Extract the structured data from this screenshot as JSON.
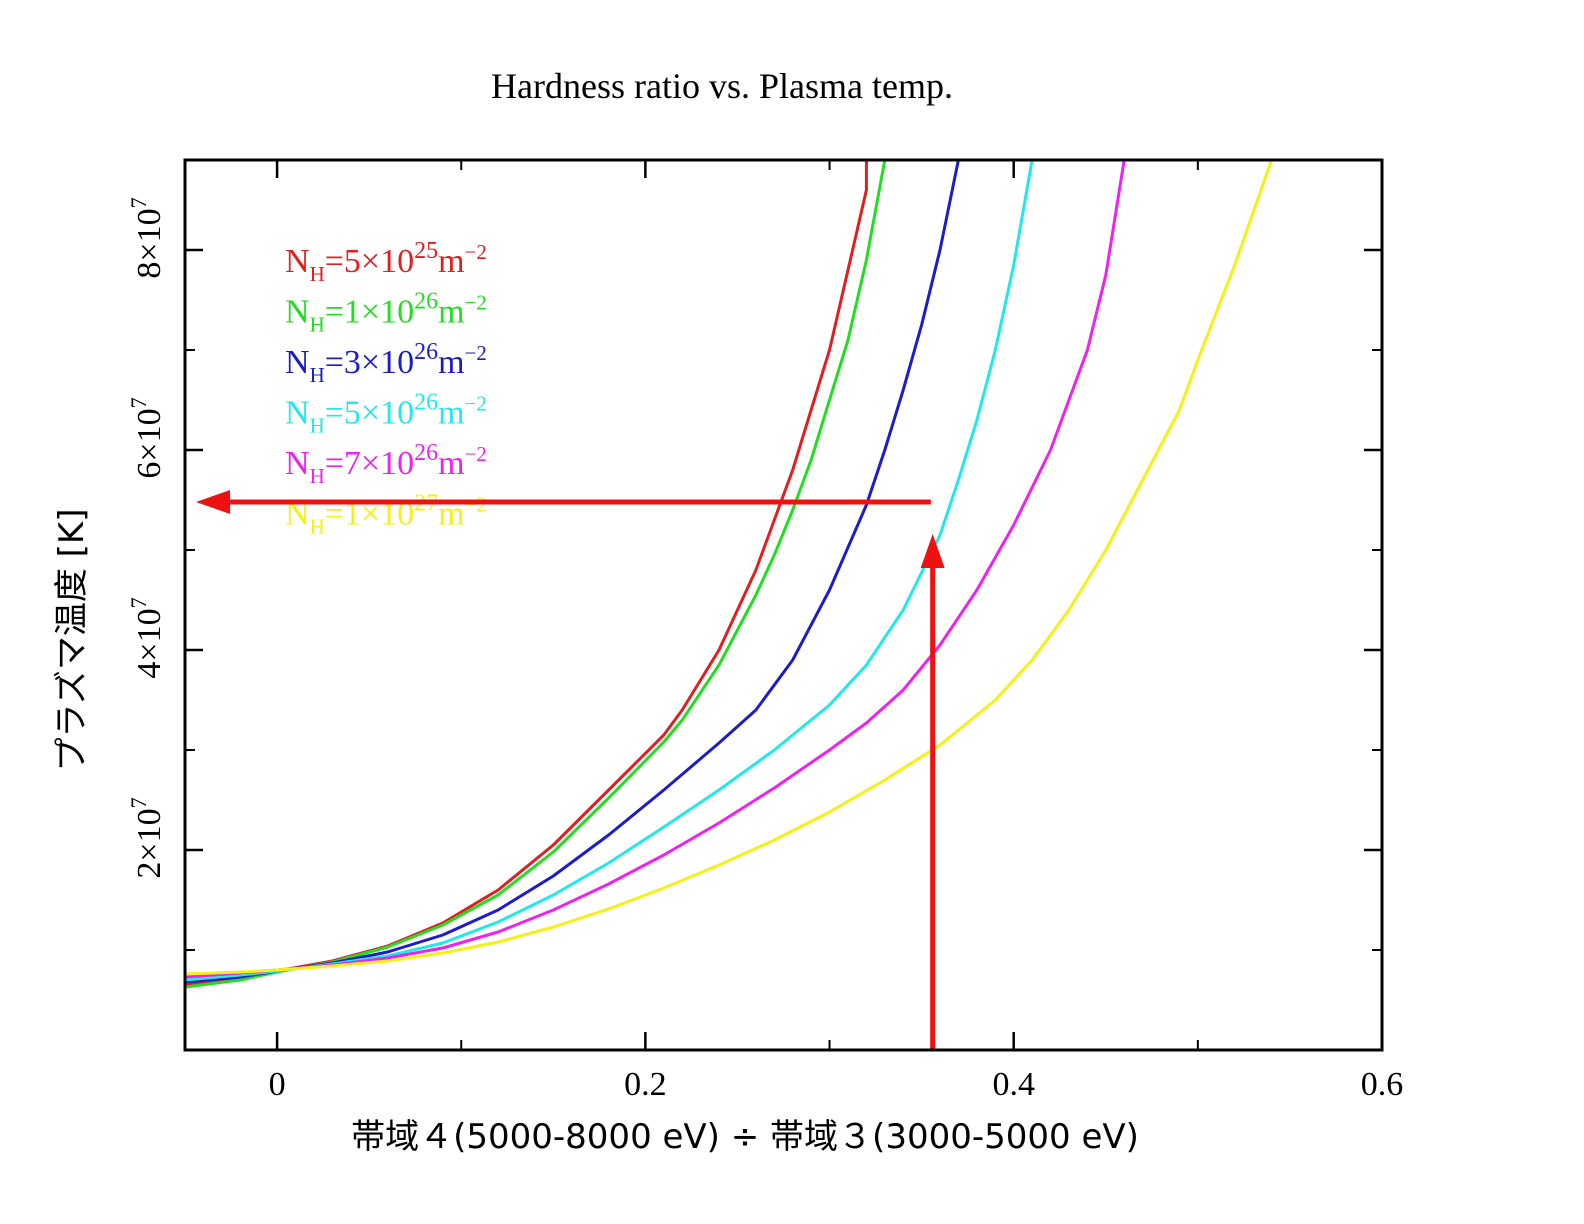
{
  "chart_data": {
    "type": "line",
    "title": "Hardness ratio vs. Plasma temp.",
    "xlabel": "帯域４(5000-8000 eV) ÷ 帯域３(3000-5000 eV)",
    "ylabel": "プラズマ温度 [K]",
    "xlim": [
      -0.05,
      0.6
    ],
    "ylim": [
      0,
      89000000
    ],
    "x_ticks": [
      {
        "value": 0,
        "label": "0"
      },
      {
        "value": 0.2,
        "label": "0.2"
      },
      {
        "value": 0.4,
        "label": "0.4"
      },
      {
        "value": 0.6,
        "label": "0.6"
      }
    ],
    "x_minor_ticks": [
      0.1,
      0.3,
      0.5
    ],
    "y_ticks": [
      {
        "value": 20000000,
        "base": "2×10",
        "exp": "7"
      },
      {
        "value": 40000000,
        "base": "4×10",
        "exp": "7"
      },
      {
        "value": 60000000,
        "base": "6×10",
        "exp": "7"
      },
      {
        "value": 80000000,
        "base": "8×10",
        "exp": "7"
      }
    ],
    "y_minor_ticks": [
      10000000,
      30000000,
      50000000,
      70000000
    ],
    "grid": false,
    "legend_position": "top-left",
    "series": [
      {
        "name": "NH=5×10^25 m^-2",
        "legend": {
          "base": "N",
          "sub": "H",
          "mid": "=5×10",
          "sup": "25",
          "unit": "m",
          "unit_sup": "−2"
        },
        "color": "#e02020",
        "x": [
          -0.05,
          -0.02,
          0.0,
          0.03,
          0.06,
          0.09,
          0.12,
          0.15,
          0.18,
          0.21,
          0.22,
          0.24,
          0.26,
          0.27,
          0.28,
          0.29,
          0.3,
          0.31,
          0.32,
          0.32
        ],
        "y": [
          6500000,
          7200000,
          7900000,
          8900000,
          10400000,
          12700000,
          16000000,
          20500000,
          26000000,
          31500000,
          34000000,
          40000000,
          48000000,
          53000000,
          58000000,
          64000000,
          70000000,
          78000000,
          86000000,
          89000000
        ]
      },
      {
        "name": "NH=1×10^26 m^-2",
        "legend": {
          "base": "N",
          "sub": "H",
          "mid": "=1×10",
          "sup": "26",
          "unit": "m",
          "unit_sup": "−2"
        },
        "color": "#22dd22",
        "x": [
          -0.05,
          -0.02,
          0.0,
          0.03,
          0.06,
          0.09,
          0.12,
          0.15,
          0.18,
          0.21,
          0.22,
          0.24,
          0.26,
          0.27,
          0.28,
          0.29,
          0.3,
          0.31,
          0.32,
          0.33
        ],
        "y": [
          6300000,
          7000000,
          7800000,
          8800000,
          10300000,
          12500000,
          15500000,
          19800000,
          25200000,
          30800000,
          33000000,
          38500000,
          45500000,
          49500000,
          54000000,
          59000000,
          65000000,
          71000000,
          79000000,
          89000000
        ]
      },
      {
        "name": "NH=3×10^26 m^-2",
        "legend": {
          "base": "N",
          "sub": "H",
          "mid": "=3×10",
          "sup": "26",
          "unit": "m",
          "unit_sup": "−2"
        },
        "color": "#1c1cc8",
        "x": [
          -0.05,
          -0.02,
          0.0,
          0.03,
          0.06,
          0.09,
          0.12,
          0.15,
          0.18,
          0.21,
          0.24,
          0.26,
          0.28,
          0.3,
          0.32,
          0.33,
          0.34,
          0.35,
          0.36,
          0.37
        ],
        "y": [
          6800000,
          7300000,
          7900000,
          8700000,
          9800000,
          11500000,
          14000000,
          17400000,
          21500000,
          26000000,
          30700000,
          34000000,
          39000000,
          46000000,
          54500000,
          60000000,
          66000000,
          72500000,
          80000000,
          89000000
        ]
      },
      {
        "name": "NH=5×10^26 m^-2",
        "legend": {
          "base": "N",
          "sub": "H",
          "mid": "=5×10",
          "sup": "26",
          "unit": "m",
          "unit_sup": "−2"
        },
        "color": "#22e8e8",
        "x": [
          -0.05,
          -0.02,
          0.0,
          0.03,
          0.06,
          0.09,
          0.12,
          0.15,
          0.18,
          0.21,
          0.24,
          0.27,
          0.3,
          0.32,
          0.34,
          0.36,
          0.37,
          0.38,
          0.39,
          0.4,
          0.41
        ],
        "y": [
          7000000,
          7500000,
          7900000,
          8600000,
          9400000,
          10700000,
          12800000,
          15500000,
          18700000,
          22300000,
          26000000,
          30000000,
          34500000,
          38500000,
          44000000,
          51500000,
          57000000,
          63000000,
          70000000,
          78500000,
          89000000
        ]
      },
      {
        "name": "NH=7×10^26 m^-2",
        "legend": {
          "base": "N",
          "sub": "H",
          "mid": "=7×10",
          "sup": "26",
          "unit": "m",
          "unit_sup": "−2"
        },
        "color": "#ee22ee",
        "x": [
          -0.05,
          -0.02,
          0.0,
          0.03,
          0.06,
          0.09,
          0.12,
          0.15,
          0.18,
          0.21,
          0.24,
          0.27,
          0.3,
          0.32,
          0.34,
          0.36,
          0.38,
          0.4,
          0.42,
          0.44,
          0.45,
          0.46
        ],
        "y": [
          7300000,
          7700000,
          8000000,
          8500000,
          9200000,
          10200000,
          11800000,
          14000000,
          16600000,
          19500000,
          22700000,
          26200000,
          30000000,
          32700000,
          36000000,
          40500000,
          46000000,
          52500000,
          60000000,
          70000000,
          77500000,
          89000000
        ]
      },
      {
        "name": "NH=1×10^27 m^-2",
        "legend": {
          "base": "N",
          "sub": "H",
          "mid": "=1×10",
          "sup": "27",
          "unit": "m",
          "unit_sup": "−2"
        },
        "color": "#f2f215",
        "x": [
          -0.05,
          -0.02,
          0.0,
          0.03,
          0.06,
          0.09,
          0.12,
          0.15,
          0.18,
          0.21,
          0.24,
          0.27,
          0.3,
          0.33,
          0.36,
          0.39,
          0.41,
          0.43,
          0.45,
          0.47,
          0.49,
          0.5,
          0.52,
          0.54
        ],
        "y": [
          7600000,
          7800000,
          8000000,
          8400000,
          8900000,
          9700000,
          10800000,
          12300000,
          14100000,
          16200000,
          18500000,
          21000000,
          23800000,
          27000000,
          30500000,
          35000000,
          39000000,
          44000000,
          50000000,
          57000000,
          64000000,
          69000000,
          78500000,
          89000000
        ]
      }
    ],
    "annotations": [
      {
        "kind": "arrow",
        "color": "#ee1111",
        "from": [
          0.356,
          0
        ],
        "to": [
          0.356,
          51600000
        ]
      },
      {
        "kind": "arrow",
        "color": "#ee1111",
        "from": [
          0.355,
          54800000
        ],
        "to": [
          -0.044,
          54800000
        ]
      }
    ]
  }
}
